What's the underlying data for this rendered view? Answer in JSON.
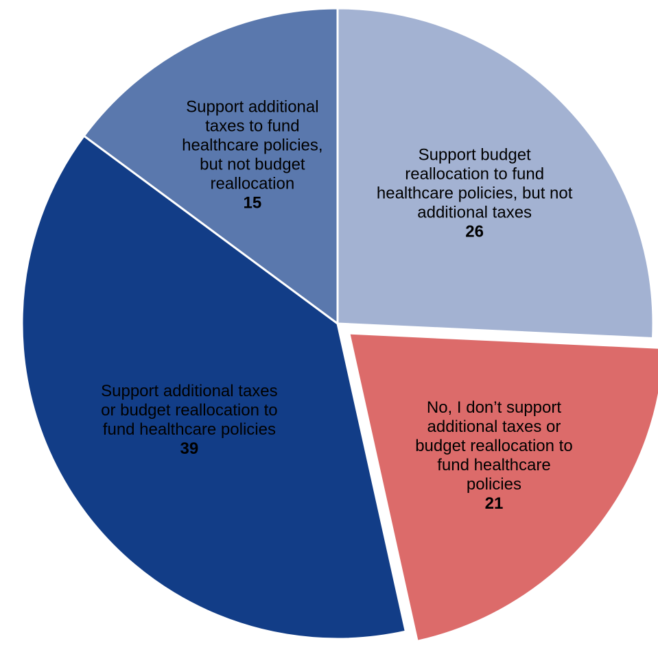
{
  "chart_data": {
    "type": "pie",
    "slices": [
      {
        "label_lines": [
          "Support budget",
          "reallocation to fund",
          "healthcare policies, but not",
          "additional taxes"
        ],
        "value": 26,
        "color": "#a3b2d2"
      },
      {
        "label_lines": [
          "No, I don’t support",
          "additional taxes or",
          "budget reallocation to",
          "fund healthcare",
          "policies"
        ],
        "value": 21,
        "color": "#dc6b6a"
      },
      {
        "label_lines": [
          "Support additional taxes",
          "or budget reallocation to",
          "fund healthcare policies"
        ],
        "value": 39,
        "color": "#123d87"
      },
      {
        "label_lines": [
          "Support additional",
          "taxes to fund",
          "healthcare policies,",
          "but not budget",
          "reallocation"
        ],
        "value": 15,
        "color": "#5a78ad"
      }
    ],
    "exploded_slice_index": 1,
    "start": "top, clockwise",
    "legend": "none"
  }
}
